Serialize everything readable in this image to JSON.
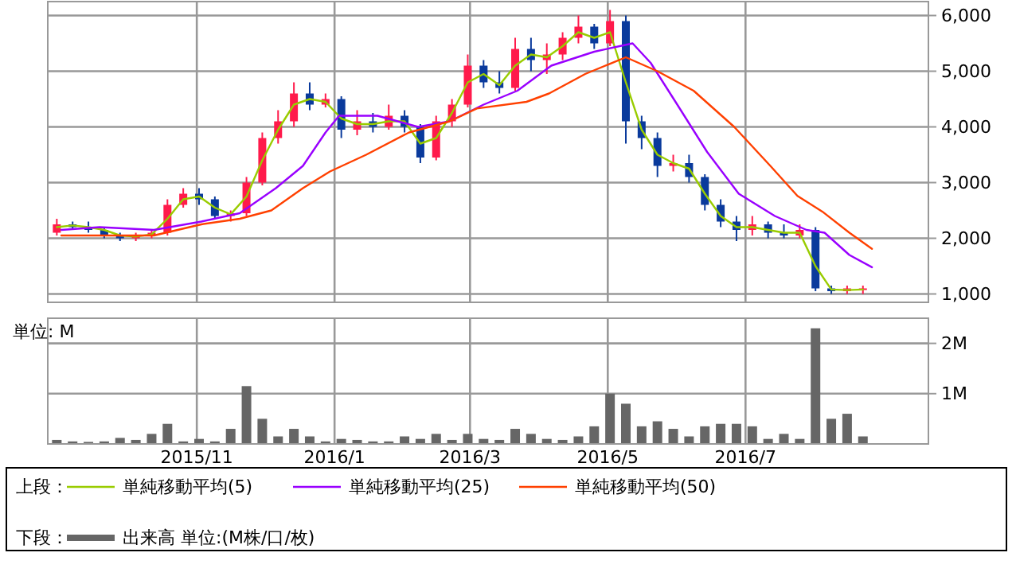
{
  "chart_data": [
    {
      "type": "candlestick",
      "legend_title": "上段：",
      "legend": "bottom",
      "grid": true,
      "tick_labels": "y",
      "xlim": [
        "2015-08-27",
        "2016-09-20"
      ],
      "xticks": [
        {
          "value": "2015-11-01",
          "label": null
        },
        {
          "value": "2016-01-01",
          "label": null
        },
        {
          "value": "2016-03-01",
          "label": null
        },
        {
          "value": "2016-05-01",
          "label": null
        },
        {
          "value": "2016-07-01",
          "label": null
        }
      ],
      "ylim": [
        850,
        6250
      ],
      "yticks": [
        {
          "value": 1000,
          "label": "1,000"
        },
        {
          "value": 2000,
          "label": "2,000"
        },
        {
          "value": 3000,
          "label": "3,000"
        },
        {
          "value": 4000,
          "label": "4,000"
        },
        {
          "value": 5000,
          "label": "5,000"
        },
        {
          "value": 6000,
          "label": "6,000"
        }
      ],
      "x": [
        "2015-08-31",
        "2015-09-07",
        "2015-09-14",
        "2015-09-21",
        "2015-09-28",
        "2015-10-05",
        "2015-10-12",
        "2015-10-19",
        "2015-10-26",
        "2015-11-02",
        "2015-11-09",
        "2015-11-16",
        "2015-11-23",
        "2015-11-30",
        "2015-12-07",
        "2015-12-14",
        "2015-12-21",
        "2015-12-28",
        "2016-01-04",
        "2016-01-11",
        "2016-01-18",
        "2016-01-25",
        "2016-02-01",
        "2016-02-08",
        "2016-02-15",
        "2016-02-22",
        "2016-02-29",
        "2016-03-07",
        "2016-03-14",
        "2016-03-21",
        "2016-03-28",
        "2016-04-04",
        "2016-04-11",
        "2016-04-18",
        "2016-04-25",
        "2016-05-02",
        "2016-05-09",
        "2016-05-16",
        "2016-05-23",
        "2016-05-30",
        "2016-06-06",
        "2016-06-13",
        "2016-06-20",
        "2016-06-27",
        "2016-07-04",
        "2016-07-11",
        "2016-07-18",
        "2016-07-25",
        "2016-08-01",
        "2016-08-08",
        "2016-08-15",
        "2016-08-22"
      ],
      "ohlc": [
        [
          2100,
          2350,
          2050,
          2250
        ],
        [
          2250,
          2300,
          2150,
          2200
        ],
        [
          2200,
          2300,
          2100,
          2150
        ],
        [
          2150,
          2200,
          2000,
          2050
        ],
        [
          2050,
          2100,
          1950,
          2000
        ],
        [
          2000,
          2100,
          1950,
          2050
        ],
        [
          2050,
          2150,
          2000,
          2100
        ],
        [
          2100,
          2700,
          2050,
          2600
        ],
        [
          2600,
          2900,
          2550,
          2800
        ],
        [
          2800,
          2900,
          2600,
          2700
        ],
        [
          2700,
          2750,
          2350,
          2400
        ],
        [
          2400,
          2500,
          2300,
          2450
        ],
        [
          2450,
          3100,
          2400,
          3000
        ],
        [
          3000,
          3900,
          2950,
          3800
        ],
        [
          3800,
          4300,
          3700,
          4100
        ],
        [
          4100,
          4800,
          4000,
          4600
        ],
        [
          4600,
          4800,
          4300,
          4400
        ],
        [
          4400,
          4600,
          4350,
          4500
        ],
        [
          4500,
          4550,
          3800,
          3950
        ],
        [
          3950,
          4300,
          3850,
          4100
        ],
        [
          4100,
          4250,
          3900,
          4000
        ],
        [
          4000,
          4400,
          3950,
          4200
        ],
        [
          4200,
          4300,
          3900,
          4000
        ],
        [
          4000,
          4050,
          3350,
          3450
        ],
        [
          3450,
          4200,
          3400,
          4100
        ],
        [
          4100,
          4500,
          4000,
          4400
        ],
        [
          4400,
          5300,
          4350,
          5100
        ],
        [
          5100,
          5200,
          4700,
          4800
        ],
        [
          4800,
          5000,
          4600,
          4700
        ],
        [
          4700,
          5600,
          4650,
          5400
        ],
        [
          5400,
          5600,
          5000,
          5200
        ],
        [
          5200,
          5500,
          4950,
          5300
        ],
        [
          5300,
          5700,
          5200,
          5600
        ],
        [
          5600,
          6000,
          5500,
          5800
        ],
        [
          5800,
          5850,
          5400,
          5500
        ],
        [
          5500,
          6100,
          5450,
          5900
        ],
        [
          5900,
          6000,
          3700,
          4100
        ],
        [
          4100,
          4200,
          3600,
          3800
        ],
        [
          3800,
          3900,
          3100,
          3300
        ],
        [
          3300,
          3500,
          3200,
          3350
        ],
        [
          3350,
          3500,
          3000,
          3100
        ],
        [
          3100,
          3150,
          2500,
          2600
        ],
        [
          2600,
          2700,
          2200,
          2300
        ],
        [
          2300,
          2400,
          1950,
          2150
        ],
        [
          2150,
          2400,
          2050,
          2250
        ],
        [
          2250,
          2300,
          2000,
          2100
        ],
        [
          2100,
          2250,
          2000,
          2050
        ],
        [
          2050,
          2250,
          2000,
          2150
        ],
        [
          2150,
          2200,
          1050,
          1100
        ],
        [
          1100,
          1150,
          1000,
          1050
        ],
        [
          1050,
          1150,
          1000,
          1100
        ],
        [
          1080,
          1150,
          1000,
          1100
        ]
      ],
      "colors": [
        "#ff1a4b",
        "#0a3a9c",
        "#0a3a9c",
        "#0a3a9c",
        "#0a3a9c",
        "#ff1a4b",
        "#ff1a4b",
        "#ff1a4b",
        "#ff1a4b",
        "#0a3a9c",
        "#0a3a9c",
        "#ff1a4b",
        "#ff1a4b",
        "#ff1a4b",
        "#ff1a4b",
        "#ff1a4b",
        "#0a3a9c",
        "#ff1a4b",
        "#0a3a9c",
        "#ff1a4b",
        "#0a3a9c",
        "#ff1a4b",
        "#0a3a9c",
        "#0a3a9c",
        "#ff1a4b",
        "#ff1a4b",
        "#ff1a4b",
        "#0a3a9c",
        "#0a3a9c",
        "#ff1a4b",
        "#0a3a9c",
        "#ff1a4b",
        "#ff1a4b",
        "#ff1a4b",
        "#0a3a9c",
        "#ff1a4b",
        "#0a3a9c",
        "#0a3a9c",
        "#0a3a9c",
        "#ff1a4b",
        "#0a3a9c",
        "#0a3a9c",
        "#0a3a9c",
        "#0a3a9c",
        "#ff1a4b",
        "#0a3a9c",
        "#0a3a9c",
        "#ff1a4b",
        "#0a3a9c",
        "#0a3a9c",
        "#ff1a4b",
        "#ff1a4b"
      ],
      "series": [
        {
          "name": "単純移動平均(5)",
          "type": "line",
          "color": "#99cc00",
          "x": [
            "2015-08-31",
            "2015-09-07",
            "2015-09-14",
            "2015-09-21",
            "2015-09-28",
            "2015-10-05",
            "2015-10-12",
            "2015-10-19",
            "2015-10-26",
            "2015-11-02",
            "2015-11-09",
            "2015-11-16",
            "2015-11-23",
            "2015-11-30",
            "2015-12-07",
            "2015-12-14",
            "2015-12-21",
            "2015-12-28",
            "2016-01-04",
            "2016-01-11",
            "2016-01-18",
            "2016-01-25",
            "2016-02-01",
            "2016-02-08",
            "2016-02-15",
            "2016-02-22",
            "2016-02-29",
            "2016-03-07",
            "2016-03-14",
            "2016-03-21",
            "2016-03-28",
            "2016-04-04",
            "2016-04-11",
            "2016-04-18",
            "2016-04-25",
            "2016-05-02",
            "2016-05-09",
            "2016-05-16",
            "2016-05-23",
            "2016-05-30",
            "2016-06-06",
            "2016-06-13",
            "2016-06-20",
            "2016-06-27",
            "2016-07-04",
            "2016-07-11",
            "2016-07-18",
            "2016-07-25",
            "2016-08-01",
            "2016-08-08",
            "2016-08-15",
            "2016-08-22"
          ],
          "values": [
            2200,
            2230,
            2200,
            2150,
            2050,
            2030,
            2070,
            2350,
            2700,
            2750,
            2550,
            2430,
            2750,
            3400,
            3950,
            4400,
            4500,
            4450,
            4150,
            4050,
            4050,
            4100,
            4100,
            3700,
            3800,
            4250,
            4800,
            4950,
            4750,
            5100,
            5300,
            5250,
            5450,
            5700,
            5600,
            5700,
            4800,
            3950,
            3500,
            3350,
            3250,
            2800,
            2400,
            2200,
            2200,
            2150,
            2100,
            2100,
            1500,
            1080,
            1070,
            1080
          ]
        },
        {
          "name": "単純移動平均(25)",
          "type": "line",
          "color": "#9900ff",
          "x": [
            "2015-09-02",
            "2015-09-19",
            "2015-10-13",
            "2015-11-03",
            "2015-11-20",
            "2015-12-06",
            "2015-12-18",
            "2015-12-28",
            "2016-01-03",
            "2016-01-20",
            "2016-01-29",
            "2016-02-07",
            "2016-02-21",
            "2016-03-07",
            "2016-03-22",
            "2016-04-06",
            "2016-04-25",
            "2016-05-12",
            "2016-05-20",
            "2016-05-31",
            "2016-06-14",
            "2016-06-28",
            "2016-07-14",
            "2016-07-28",
            "2016-08-05",
            "2016-08-16",
            "2016-08-26"
          ],
          "values": [
            2150,
            2200,
            2150,
            2300,
            2450,
            2900,
            3300,
            3900,
            4200,
            4200,
            4100,
            4000,
            4100,
            4400,
            4650,
            5100,
            5350,
            5500,
            5150,
            4450,
            3550,
            2800,
            2400,
            2150,
            2100,
            1700,
            1480
          ]
        },
        {
          "name": "単純移動平均(50)",
          "type": "line",
          "color": "#ff4000",
          "x": [
            "2015-09-02",
            "2015-10-13",
            "2015-11-03",
            "2015-11-20",
            "2015-12-04",
            "2015-12-18",
            "2015-12-30",
            "2016-01-15",
            "2016-02-03",
            "2016-02-21",
            "2016-03-04",
            "2016-03-26",
            "2016-04-05",
            "2016-04-21",
            "2016-05-09",
            "2016-05-23",
            "2016-06-08",
            "2016-06-26",
            "2016-07-12",
            "2016-07-24",
            "2016-08-04",
            "2016-08-16",
            "2016-08-26"
          ],
          "values": [
            2050,
            2050,
            2250,
            2350,
            2500,
            2900,
            3200,
            3500,
            3900,
            4100,
            4330,
            4450,
            4600,
            4950,
            5250,
            5000,
            4650,
            4000,
            3300,
            2760,
            2480,
            2100,
            1810
          ]
        }
      ]
    },
    {
      "type": "bar",
      "legend_title": "下段：",
      "legend": "bottom",
      "grid": true,
      "annotations": [
        "単位: M"
      ],
      "xlim": [
        "2015-08-27",
        "2016-09-20"
      ],
      "xticks": [
        {
          "value": "2015-11-01",
          "label": "2015/11"
        },
        {
          "value": "2016-01-01",
          "label": "2016/1"
        },
        {
          "value": "2016-03-01",
          "label": "2016/3"
        },
        {
          "value": "2016-05-01",
          "label": "2016/5"
        },
        {
          "value": "2016-07-01",
          "label": "2016/7"
        }
      ],
      "ylim": [
        0,
        2.5
      ],
      "yticks": [
        {
          "value": 1,
          "label": "1M"
        },
        {
          "value": 2,
          "label": "2M"
        }
      ],
      "x": [
        "2015-08-31",
        "2015-09-07",
        "2015-09-14",
        "2015-09-21",
        "2015-09-28",
        "2015-10-05",
        "2015-10-12",
        "2015-10-19",
        "2015-10-26",
        "2015-11-02",
        "2015-11-09",
        "2015-11-16",
        "2015-11-23",
        "2015-11-30",
        "2015-12-07",
        "2015-12-14",
        "2015-12-21",
        "2015-12-28",
        "2016-01-04",
        "2016-01-11",
        "2016-01-18",
        "2016-01-25",
        "2016-02-01",
        "2016-02-08",
        "2016-02-15",
        "2016-02-22",
        "2016-02-29",
        "2016-03-07",
        "2016-03-14",
        "2016-03-21",
        "2016-03-28",
        "2016-04-04",
        "2016-04-11",
        "2016-04-18",
        "2016-04-25",
        "2016-05-02",
        "2016-05-09",
        "2016-05-16",
        "2016-05-23",
        "2016-05-30",
        "2016-06-06",
        "2016-06-13",
        "2016-06-20",
        "2016-06-27",
        "2016-07-04",
        "2016-07-11",
        "2016-07-18",
        "2016-07-25",
        "2016-08-01",
        "2016-08-08",
        "2016-08-15",
        "2016-08-22"
      ],
      "series": [
        {
          "name": "出来高 単位:(M株/口/枚)",
          "color": "#666666",
          "values": [
            0.08,
            0.05,
            0.04,
            0.05,
            0.12,
            0.08,
            0.2,
            0.4,
            0.05,
            0.1,
            0.05,
            0.3,
            1.15,
            0.5,
            0.15,
            0.3,
            0.15,
            0.05,
            0.1,
            0.08,
            0.05,
            0.05,
            0.15,
            0.1,
            0.2,
            0.08,
            0.2,
            0.1,
            0.08,
            0.3,
            0.2,
            0.1,
            0.08,
            0.15,
            0.35,
            1.0,
            0.8,
            0.35,
            0.45,
            0.3,
            0.15,
            0.35,
            0.4,
            0.4,
            0.35,
            0.1,
            0.2,
            0.1,
            2.3,
            0.5,
            0.6,
            0.15
          ]
        }
      ]
    }
  ]
}
